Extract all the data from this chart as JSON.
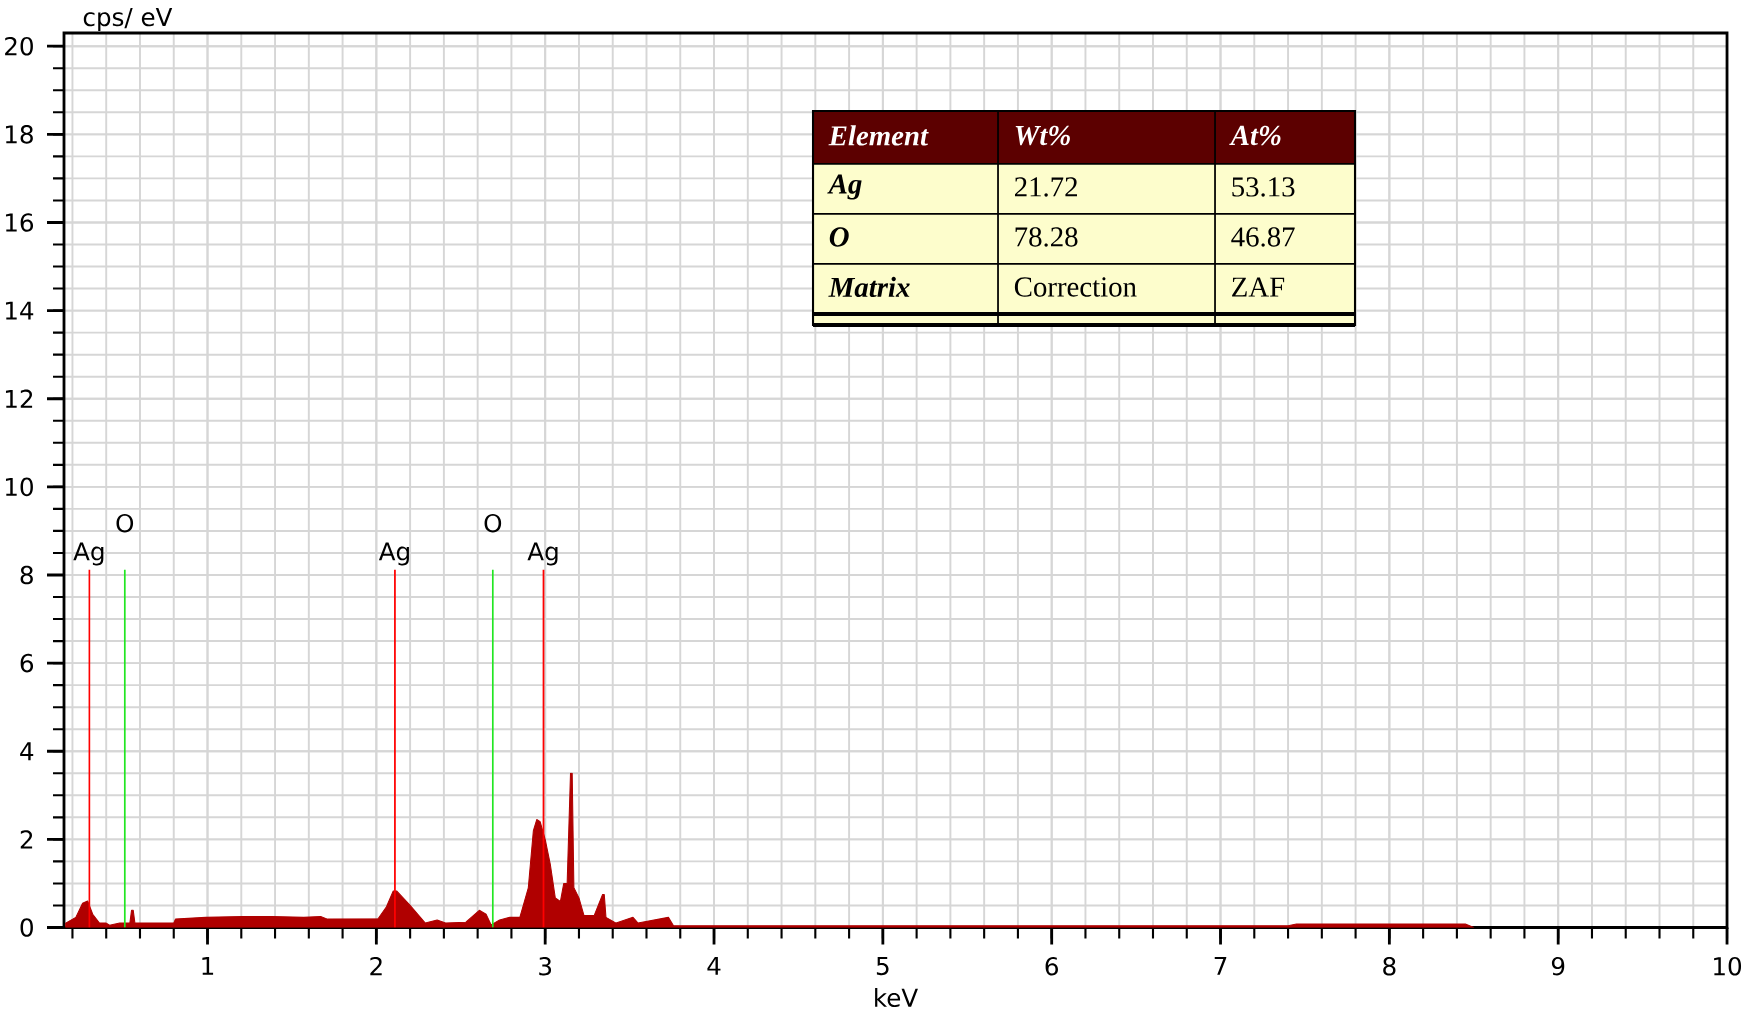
{
  "chart_data": {
    "type": "area",
    "xlabel": "keV",
    "ylabel": "cps/ eV",
    "xlim": [
      0.15,
      10
    ],
    "ylim": [
      0,
      20.3
    ],
    "xticks": [
      1,
      2,
      3,
      4,
      5,
      6,
      7,
      8,
      9,
      10
    ],
    "yticks": [
      0,
      2,
      4,
      6,
      8,
      10,
      12,
      14,
      16,
      18,
      20
    ],
    "grid": true,
    "series": [
      {
        "color": "#b00000",
        "x": [
          0.16,
          0.22,
          0.26,
          0.29,
          0.32,
          0.36,
          0.4,
          0.42,
          0.48,
          0.54,
          0.55,
          0.56,
          0.57,
          0.8,
          0.81,
          0.99,
          1.21,
          1.38,
          1.57,
          1.67,
          1.71,
          2.01,
          2.06,
          2.1,
          2.12,
          2.2,
          2.29,
          2.36,
          2.41,
          2.53,
          2.61,
          2.65,
          2.68,
          2.73,
          2.79,
          2.85,
          2.9,
          2.93,
          2.95,
          2.97,
          3.0,
          3.03,
          3.06,
          3.09,
          3.11,
          3.13,
          3.15,
          3.16,
          3.17,
          3.2,
          3.23,
          3.29,
          3.34,
          3.35,
          3.36,
          3.42,
          3.52,
          3.55,
          3.73,
          3.76,
          7.4,
          7.45,
          8.45,
          8.5
        ],
        "values": [
          0.1,
          0.23,
          0.55,
          0.6,
          0.3,
          0.1,
          0.1,
          0.05,
          0.1,
          0.1,
          0.39,
          0.39,
          0.1,
          0.1,
          0.19,
          0.23,
          0.25,
          0.25,
          0.23,
          0.25,
          0.19,
          0.2,
          0.47,
          0.83,
          0.83,
          0.5,
          0.1,
          0.17,
          0.1,
          0.12,
          0.39,
          0.3,
          0.06,
          0.17,
          0.23,
          0.23,
          0.9,
          2.2,
          2.45,
          2.4,
          2.0,
          1.44,
          0.67,
          0.59,
          1.0,
          1.0,
          3.5,
          3.5,
          0.9,
          0.67,
          0.27,
          0.27,
          0.75,
          0.75,
          0.23,
          0.1,
          0.23,
          0.1,
          0.23,
          0.04,
          0.04,
          0.08,
          0.08,
          0
        ]
      }
    ],
    "ref_lines": [
      {
        "axis": "x",
        "value": 0.3,
        "label": "Ag",
        "color": "#ff0000"
      },
      {
        "axis": "x",
        "value": 0.51,
        "label": "O",
        "color": "#22e622"
      },
      {
        "axis": "x",
        "value": 2.11,
        "label": "Ag",
        "color": "#ff0000"
      },
      {
        "axis": "x",
        "value": 2.69,
        "label": "O",
        "color": "#22e622"
      },
      {
        "axis": "x",
        "value": 2.99,
        "label": "Ag",
        "color": "#ff0000"
      }
    ],
    "annotations": [
      "Element",
      "Wt%",
      "At%",
      "Ag",
      "21.72",
      "53.13",
      "O",
      "78.28",
      "46.87",
      "Matrix",
      "Correction",
      "ZAF"
    ]
  }
}
